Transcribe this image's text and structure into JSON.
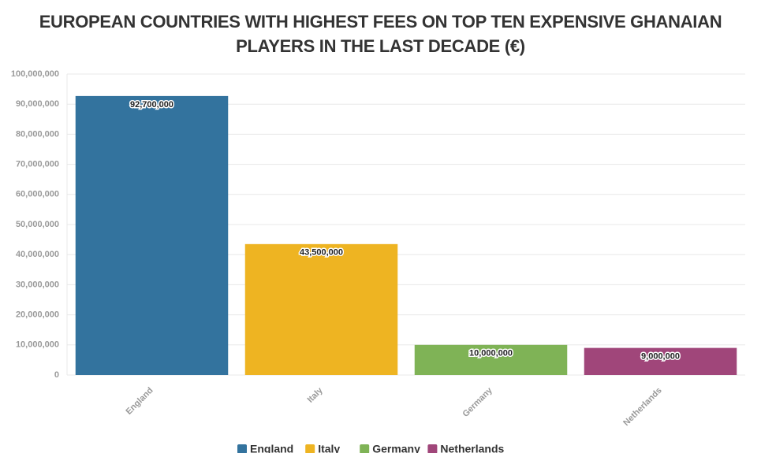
{
  "chart_data": {
    "type": "bar",
    "title": "EUROPEAN COUNTRIES WITH HIGHEST FEES ON TOP TEN EXPENSIVE GHANAIAN PLAYERS IN THE LAST DECADE (€)",
    "categories": [
      "England",
      "Italy",
      "Germany",
      "Netherlands"
    ],
    "values": [
      92700000,
      43500000,
      10000000,
      9000000
    ],
    "value_labels": [
      "92,700,000",
      "43,500,000",
      "10,000,000",
      "9,000,000"
    ],
    "colors": [
      "#33739e",
      "#eeb422",
      "#7fb356",
      "#a0467a"
    ],
    "ylim": [
      0,
      100000000
    ],
    "yticks": [
      {
        "value": 0,
        "label": "0"
      },
      {
        "value": 10000000,
        "label": "10,000,000"
      },
      {
        "value": 20000000,
        "label": "20,000,000"
      },
      {
        "value": 30000000,
        "label": "30,000,000"
      },
      {
        "value": 40000000,
        "label": "40,000,000"
      },
      {
        "value": 50000000,
        "label": "50,000,000"
      },
      {
        "value": 60000000,
        "label": "60,000,000"
      },
      {
        "value": 70000000,
        "label": "70,000,000"
      },
      {
        "value": 80000000,
        "label": "80,000,000"
      },
      {
        "value": 90000000,
        "label": "90,000,000"
      },
      {
        "value": 100000000,
        "label": "100,000,000"
      }
    ],
    "grid": true
  }
}
